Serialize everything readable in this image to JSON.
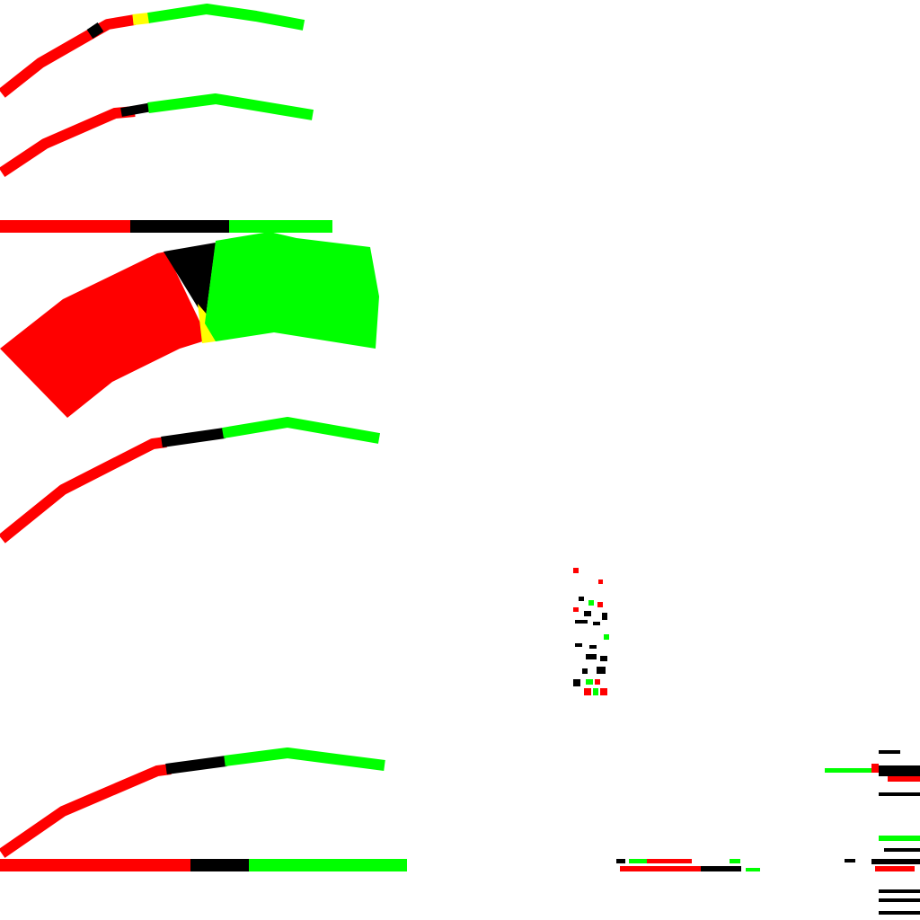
{
  "palette": {
    "background": "#ffffff",
    "red": "#ff0000",
    "green": "#00ff00",
    "black": "#000000",
    "yellow": "#ffff00"
  }
}
